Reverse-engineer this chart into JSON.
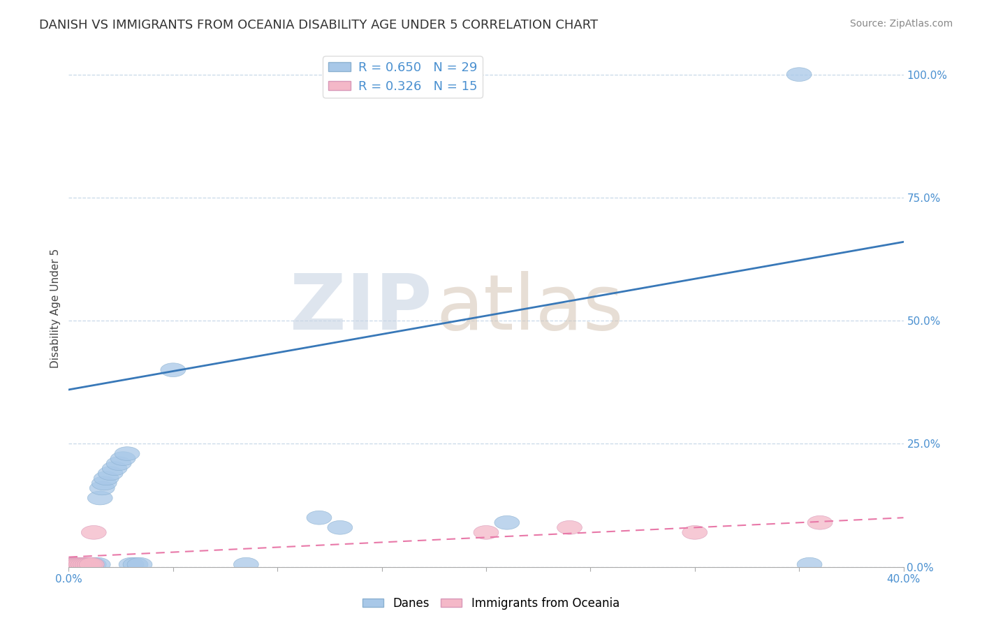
{
  "title": "DANISH VS IMMIGRANTS FROM OCEANIA DISABILITY AGE UNDER 5 CORRELATION CHART",
  "source": "Source: ZipAtlas.com",
  "ylabel": "Disability Age Under 5",
  "r_danes": 0.65,
  "n_danes": 29,
  "r_immigrants": 0.326,
  "n_immigrants": 15,
  "blue_color": "#a8c8e8",
  "pink_color": "#f4b8c8",
  "blue_line_color": "#3878b8",
  "pink_line_color": "#e878a8",
  "axis_label_color": "#4a90d0",
  "xlim": [
    0.0,
    0.4
  ],
  "ylim": [
    0.0,
    1.05
  ],
  "danes_x": [
    0.002,
    0.003,
    0.004,
    0.005,
    0.006,
    0.007,
    0.008,
    0.01,
    0.012,
    0.014,
    0.015,
    0.016,
    0.017,
    0.018,
    0.02,
    0.022,
    0.024,
    0.026,
    0.028,
    0.03,
    0.032,
    0.034,
    0.05,
    0.085,
    0.12,
    0.13,
    0.21,
    0.35,
    0.355
  ],
  "danes_y": [
    0.005,
    0.005,
    0.005,
    0.005,
    0.005,
    0.005,
    0.005,
    0.005,
    0.005,
    0.005,
    0.14,
    0.16,
    0.17,
    0.18,
    0.19,
    0.2,
    0.21,
    0.22,
    0.23,
    0.005,
    0.005,
    0.005,
    0.4,
    0.005,
    0.1,
    0.08,
    0.09,
    1.0,
    0.005
  ],
  "immigrants_x": [
    0.002,
    0.003,
    0.004,
    0.005,
    0.006,
    0.007,
    0.008,
    0.009,
    0.01,
    0.011,
    0.012,
    0.2,
    0.24,
    0.3,
    0.36
  ],
  "immigrants_y": [
    0.005,
    0.005,
    0.005,
    0.005,
    0.005,
    0.005,
    0.005,
    0.005,
    0.005,
    0.005,
    0.07,
    0.07,
    0.08,
    0.07,
    0.09
  ],
  "blue_trendline_x": [
    0.0,
    0.4
  ],
  "blue_trendline_y": [
    0.36,
    0.66
  ],
  "pink_trendline_x": [
    0.0,
    0.4
  ],
  "pink_trendline_y": [
    0.02,
    0.1
  ],
  "xtick_positions": [
    0.0,
    0.05,
    0.1,
    0.15,
    0.2,
    0.25,
    0.3,
    0.35,
    0.4
  ],
  "xtick_labels": [
    "0.0%",
    "",
    "",
    "",
    "",
    "",
    "",
    "",
    "40.0%"
  ],
  "yticks_right": [
    0.0,
    0.25,
    0.5,
    0.75,
    1.0
  ],
  "ytick_labels_right": [
    "0.0%",
    "25.0%",
    "50.0%",
    "75.0%",
    "100.0%"
  ],
  "grid_color": "#c8d8e8",
  "background_color": "#ffffff",
  "legend_danes": "Danes",
  "legend_immigrants": "Immigrants from Oceania",
  "watermark_zip_color": "#c8d4e4",
  "watermark_atlas_color": "#d4c4b4"
}
